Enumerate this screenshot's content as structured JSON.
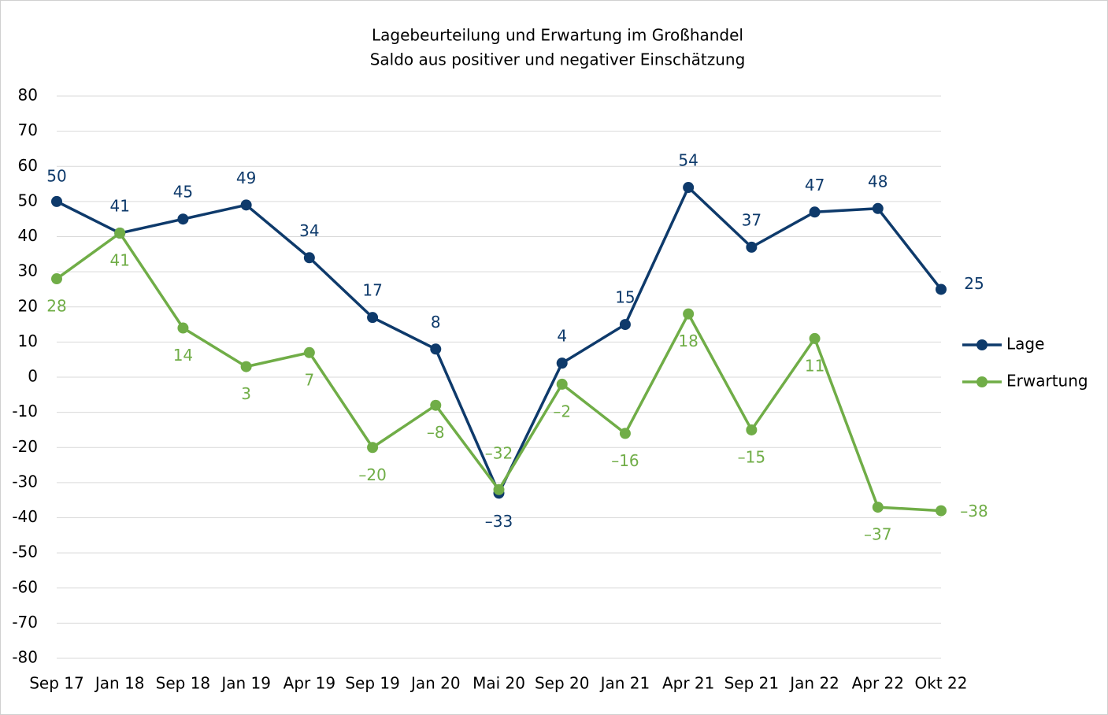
{
  "chart_data": {
    "type": "line",
    "title": "Lagebeurteilung und Erwartung im Großhandel",
    "subtitle": "Saldo aus positiver und negativer Einschätzung",
    "categories": [
      "Sep 17",
      "Jan 18",
      "Sep 18",
      "Jan 19",
      "Apr 19",
      "Sep 19",
      "Jan 20",
      "Mai 20",
      "Sep 20",
      "Jan 21",
      "Apr 21",
      "Sep 21",
      "Jan 22",
      "Apr 22",
      "Okt 22"
    ],
    "series": [
      {
        "name": "Lage",
        "color": "#0e3a6b",
        "values": [
          50,
          41,
          45,
          49,
          34,
          17,
          8,
          -33,
          4,
          15,
          54,
          37,
          47,
          48,
          25
        ],
        "value_labels": [
          "50",
          "41",
          "45",
          "49",
          "34",
          "17",
          "8",
          "–33",
          "4",
          "15",
          "54",
          "37",
          "47",
          "48",
          "25"
        ]
      },
      {
        "name": "Erwartung",
        "color": "#70ad47",
        "values": [
          28,
          41,
          14,
          3,
          7,
          -20,
          -8,
          -32,
          -2,
          -16,
          18,
          -15,
          11,
          -37,
          -38
        ],
        "value_labels": [
          "28",
          "41",
          "14",
          "3",
          "7",
          "–20",
          "–8",
          "–32",
          "–2",
          "–16",
          "18",
          "–15",
          "11",
          "–37",
          "–38"
        ]
      }
    ],
    "ylim": [
      -80,
      80
    ],
    "yticks": [
      -80,
      -70,
      -60,
      -50,
      -40,
      -30,
      -20,
      -10,
      0,
      10,
      20,
      30,
      40,
      50,
      60,
      70,
      80
    ],
    "grid": true,
    "legend": "right"
  }
}
